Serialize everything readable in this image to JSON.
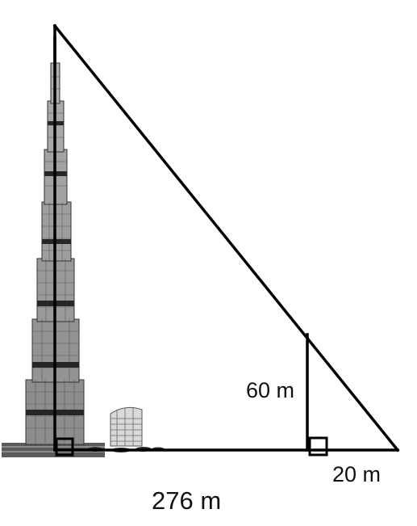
{
  "labels": {
    "pole_height": "60 m",
    "shadow_beyond_pole": "20 m",
    "total_base": "276 m"
  },
  "colors": {
    "line": "#000000",
    "building_light": "#dcdcdc",
    "building_mid": "#8a8a8a",
    "building_dark": "#2a2a2a"
  },
  "icons": {
    "tower": "burj-khalifa-illustration",
    "small_building": "low-rise-building-illustration"
  }
}
